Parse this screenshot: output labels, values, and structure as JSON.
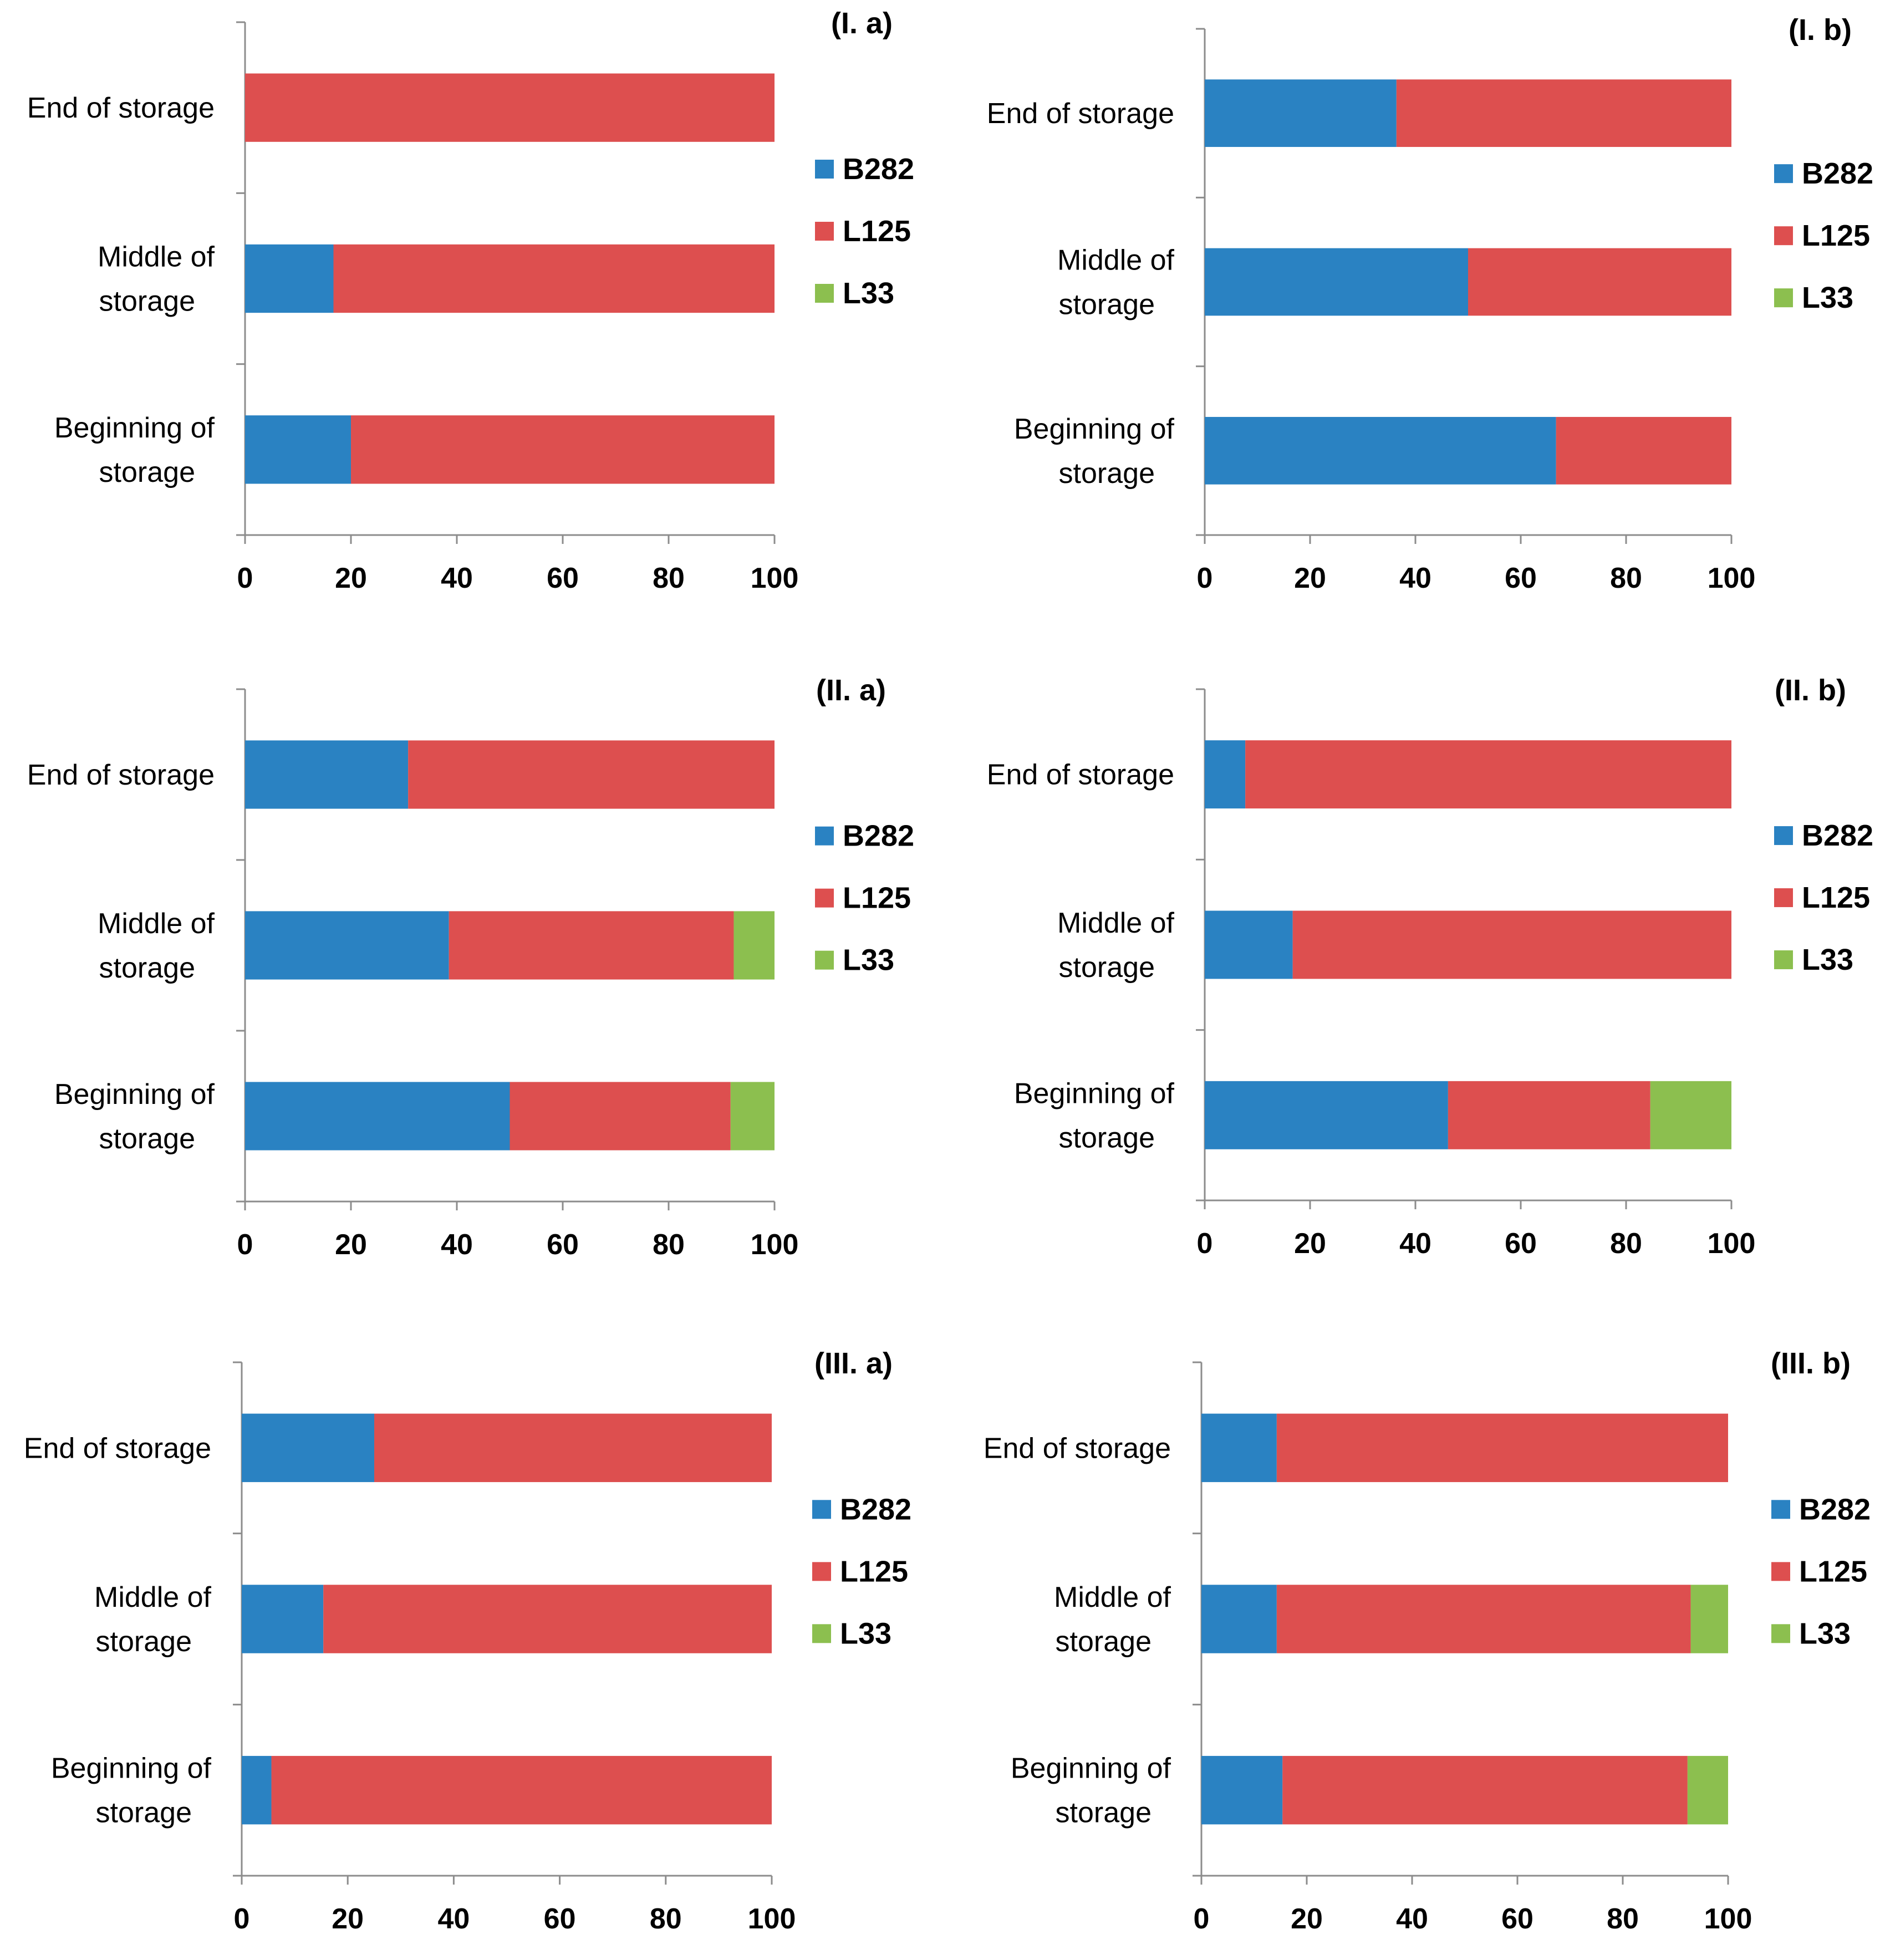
{
  "colors": {
    "B282": "#2a82c2",
    "L125": "#dd4f4f",
    "L33": "#8cbf4f"
  },
  "chart_data": [
    {
      "type": "bar",
      "orientation": "horizontal",
      "stacked": true,
      "title": "(I. a)",
      "categories": [
        "End of storage",
        "Middle of storage",
        "Beginning of storage"
      ],
      "series": [
        {
          "name": "B282",
          "values": [
            0,
            16.7,
            20
          ]
        },
        {
          "name": "L125",
          "values": [
            100,
            83.3,
            80
          ]
        },
        {
          "name": "L33",
          "values": [
            0,
            0,
            0
          ]
        }
      ],
      "xlim": [
        0,
        100
      ],
      "xticks": [
        0,
        20,
        40,
        60,
        80,
        100
      ],
      "xlabel": "",
      "ylabel": "",
      "legend": "right"
    },
    {
      "type": "bar",
      "orientation": "horizontal",
      "stacked": true,
      "title": "(I. b)",
      "categories": [
        "End of storage",
        "Middle of storage",
        "Beginning of storage"
      ],
      "series": [
        {
          "name": "B282",
          "values": [
            36.4,
            50,
            66.7
          ]
        },
        {
          "name": "L125",
          "values": [
            63.6,
            50,
            33.3
          ]
        },
        {
          "name": "L33",
          "values": [
            0,
            0,
            0
          ]
        }
      ],
      "xlim": [
        0,
        100
      ],
      "xticks": [
        0,
        20,
        40,
        60,
        80,
        100
      ],
      "xlabel": "",
      "ylabel": "",
      "legend": "right"
    },
    {
      "type": "bar",
      "orientation": "horizontal",
      "stacked": true,
      "title": "(II. a)",
      "categories": [
        "End of storage",
        "Middle of storage",
        "Beginning of storage"
      ],
      "series": [
        {
          "name": "B282",
          "values": [
            30.8,
            38.5,
            50
          ]
        },
        {
          "name": "L125",
          "values": [
            69.2,
            53.8,
            41.7
          ]
        },
        {
          "name": "L33",
          "values": [
            0,
            7.7,
            8.3
          ]
        }
      ],
      "xlim": [
        0,
        100
      ],
      "xticks": [
        0,
        20,
        40,
        60,
        80,
        100
      ],
      "xlabel": "",
      "ylabel": "",
      "legend": "right"
    },
    {
      "type": "bar",
      "orientation": "horizontal",
      "stacked": true,
      "title": "(II. b)",
      "categories": [
        "End of storage",
        "Middle of storage",
        "Beginning of storage"
      ],
      "series": [
        {
          "name": "B282",
          "values": [
            7.7,
            16.7,
            46.2
          ]
        },
        {
          "name": "L125",
          "values": [
            92.3,
            83.3,
            38.4
          ]
        },
        {
          "name": "L33",
          "values": [
            0,
            0,
            15.4
          ]
        }
      ],
      "xlim": [
        0,
        100
      ],
      "xticks": [
        0,
        20,
        40,
        60,
        80,
        100
      ],
      "xlabel": "",
      "ylabel": "",
      "legend": "right"
    },
    {
      "type": "bar",
      "orientation": "horizontal",
      "stacked": true,
      "title": "(III. a)",
      "categories": [
        "End of storage",
        "Middle of storage",
        "Beginning of storage"
      ],
      "series": [
        {
          "name": "B282",
          "values": [
            25,
            15.4,
            5.6
          ]
        },
        {
          "name": "L125",
          "values": [
            75,
            84.6,
            94.4
          ]
        },
        {
          "name": "L33",
          "values": [
            0,
            0,
            0
          ]
        }
      ],
      "xlim": [
        0,
        100
      ],
      "xticks": [
        0,
        20,
        40,
        60,
        80,
        100
      ],
      "xlabel": "",
      "ylabel": "",
      "legend": "right"
    },
    {
      "type": "bar",
      "orientation": "horizontal",
      "stacked": true,
      "title": "(III. b)",
      "categories": [
        "End of storage",
        "Middle of storage",
        "Beginning of storage"
      ],
      "series": [
        {
          "name": "B282",
          "values": [
            14.3,
            14.3,
            15.4
          ]
        },
        {
          "name": "L125",
          "values": [
            85.7,
            78.6,
            76.9
          ]
        },
        {
          "name": "L33",
          "values": [
            0,
            7.1,
            7.7
          ]
        }
      ],
      "xlim": [
        0,
        100
      ],
      "xticks": [
        0,
        20,
        40,
        60,
        80,
        100
      ],
      "xlabel": "",
      "ylabel": "",
      "legend": "right"
    }
  ]
}
